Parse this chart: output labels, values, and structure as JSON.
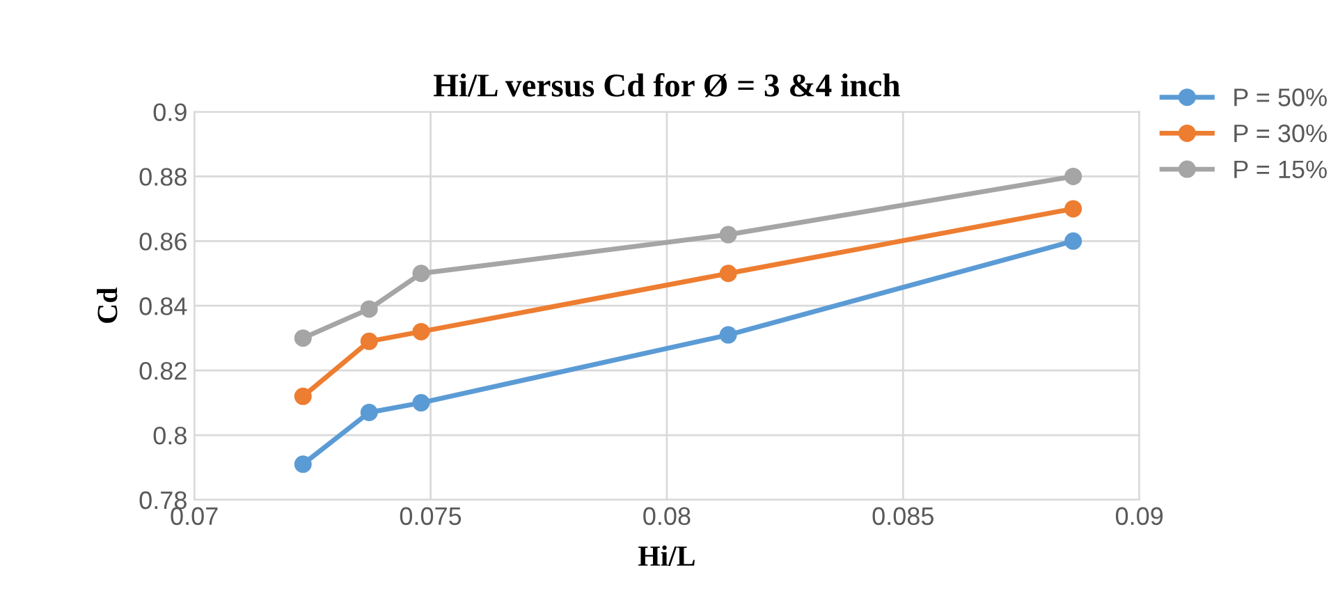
{
  "chart_data": {
    "type": "line",
    "title": "Hi/L versus Cd for Ø = 3 &4 inch",
    "xlabel": "Hi/L",
    "ylabel": "Cd",
    "x": [
      0.0723,
      0.0737,
      0.0748,
      0.0813,
      0.0886
    ],
    "series": [
      {
        "name": "P = 50%",
        "color": "#5b9bd5",
        "values": [
          0.791,
          0.807,
          0.81,
          0.831,
          0.86
        ]
      },
      {
        "name": "P = 30%",
        "color": "#ed7d31",
        "values": [
          0.812,
          0.829,
          0.832,
          0.85,
          0.87
        ]
      },
      {
        "name": "P = 15%",
        "color": "#a5a5a5",
        "values": [
          0.83,
          0.839,
          0.85,
          0.862,
          0.88
        ]
      }
    ],
    "xlim": [
      0.07,
      0.09
    ],
    "xticks": [
      0.07,
      0.075,
      0.08,
      0.085,
      0.09
    ],
    "ylim": [
      0.78,
      0.9
    ],
    "yticks": [
      0.78,
      0.8,
      0.82,
      0.84,
      0.86,
      0.88,
      0.9
    ],
    "grid": true,
    "legend": "top right",
    "marker": "circle",
    "line_style": "solid"
  }
}
